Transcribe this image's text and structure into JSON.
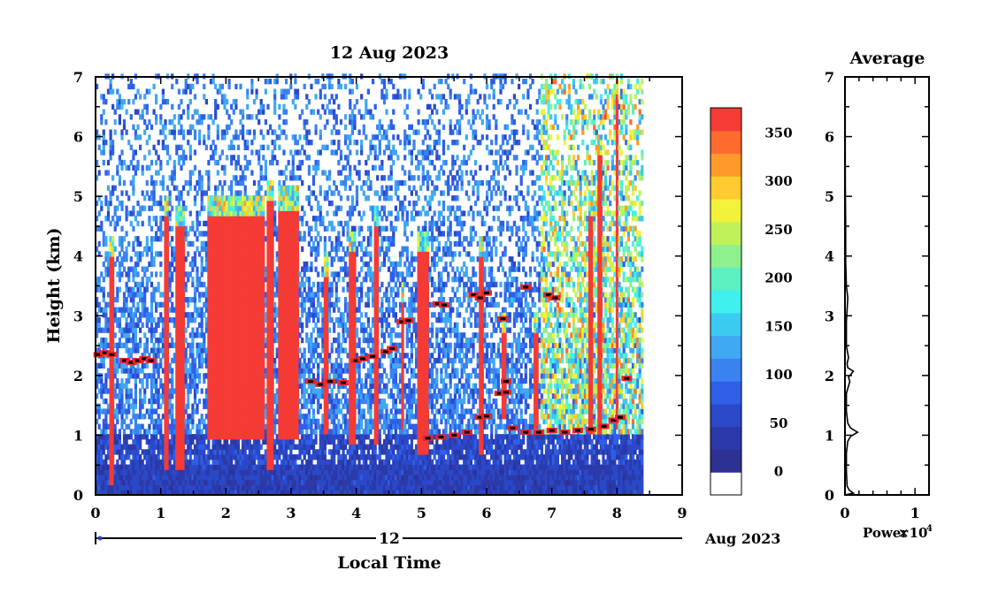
{
  "chart_data": [
    {
      "type": "heatmap",
      "title": "12 Aug 2023",
      "xlabel": "Local Time",
      "ylabel": "Height (km)",
      "x_ticks": [
        "0",
        "1",
        "2",
        "3",
        "4",
        "5",
        "6",
        "7",
        "8",
        "9"
      ],
      "y_ticks": [
        "0",
        "1",
        "2",
        "3",
        "4",
        "5",
        "6",
        "7"
      ],
      "xlim": [
        0,
        9
      ],
      "ylim": [
        0,
        7
      ],
      "data_end_time": 8.4,
      "date_axis": {
        "day_label": "12",
        "month_year_label": "Aug 2023"
      },
      "colorbar": {
        "ticks": [
          "0",
          "50",
          "100",
          "150",
          "200",
          "250",
          "300",
          "350"
        ],
        "range": [
          -25,
          375
        ],
        "colors": [
          "#ffffff",
          "#2e3192",
          "#2b3aa8",
          "#2a48c8",
          "#2f5fe6",
          "#3a82f0",
          "#40a8f2",
          "#3ccbf0",
          "#3ff0ee",
          "#5cf0c2",
          "#8ff08e",
          "#bff25a",
          "#f2f23a",
          "#ffcb30",
          "#ff9a2a",
          "#ff6a2e",
          "#f53b35"
        ]
      },
      "series": [
        {
          "name": "clouds",
          "cells": []
        },
        {
          "name": "cloud_base",
          "points": [
            [
              0.05,
              2.35
            ],
            [
              0.15,
              2.38
            ],
            [
              0.25,
              2.35
            ],
            [
              0.45,
              2.25
            ],
            [
              0.55,
              2.22
            ],
            [
              0.65,
              2.25
            ],
            [
              0.75,
              2.28
            ],
            [
              0.85,
              2.25
            ],
            [
              3.3,
              1.9
            ],
            [
              3.45,
              1.85
            ],
            [
              3.6,
              1.9
            ],
            [
              3.8,
              1.88
            ],
            [
              4.0,
              2.25
            ],
            [
              4.1,
              2.28
            ],
            [
              4.25,
              2.32
            ],
            [
              4.45,
              2.4
            ],
            [
              4.55,
              2.45
            ],
            [
              4.7,
              2.9
            ],
            [
              4.8,
              2.92
            ],
            [
              5.25,
              3.2
            ],
            [
              5.35,
              3.18
            ],
            [
              5.8,
              3.35
            ],
            [
              5.9,
              3.3
            ],
            [
              6.0,
              3.38
            ],
            [
              6.25,
              2.95
            ],
            [
              6.3,
              1.9
            ],
            [
              6.6,
              3.48
            ],
            [
              6.95,
              3.35
            ],
            [
              7.05,
              3.3
            ],
            [
              5.1,
              0.95
            ],
            [
              5.3,
              0.97
            ],
            [
              5.5,
              1.0
            ],
            [
              5.7,
              1.05
            ],
            [
              5.9,
              1.3
            ],
            [
              6.0,
              1.32
            ],
            [
              6.2,
              1.7
            ],
            [
              6.3,
              1.72
            ],
            [
              6.4,
              1.12
            ],
            [
              6.6,
              1.05
            ],
            [
              6.8,
              1.05
            ],
            [
              7.0,
              1.08
            ],
            [
              7.2,
              1.05
            ],
            [
              7.4,
              1.08
            ],
            [
              7.6,
              1.1
            ],
            [
              7.8,
              1.15
            ],
            [
              7.95,
              1.25
            ],
            [
              8.05,
              1.3
            ],
            [
              8.15,
              1.95
            ]
          ]
        }
      ]
    },
    {
      "type": "line",
      "title": "Average",
      "xlabel": "Power",
      "x_multiplier_label": "×10",
      "x_multiplier_exp": "4",
      "x_ticks": [
        "0",
        "1"
      ],
      "y_ticks": [
        "0",
        "1",
        "2",
        "3",
        "4",
        "5",
        "6",
        "7"
      ],
      "xlim": [
        0,
        1.2
      ],
      "ylim": [
        0,
        7
      ],
      "series": [
        {
          "name": "average_power",
          "points": [
            [
              0.0,
              0.0
            ],
            [
              0.12,
              0.03
            ],
            [
              0.06,
              0.08
            ],
            [
              0.03,
              0.15
            ],
            [
              0.02,
              0.4
            ],
            [
              0.02,
              0.7
            ],
            [
              0.04,
              0.9
            ],
            [
              0.08,
              0.98
            ],
            [
              0.18,
              1.05
            ],
            [
              0.08,
              1.12
            ],
            [
              0.04,
              1.2
            ],
            [
              0.02,
              1.4
            ],
            [
              0.02,
              1.7
            ],
            [
              0.07,
              1.9
            ],
            [
              0.05,
              1.97
            ],
            [
              0.12,
              2.07
            ],
            [
              0.04,
              2.13
            ],
            [
              0.03,
              2.2
            ],
            [
              0.05,
              2.3
            ],
            [
              0.02,
              2.5
            ],
            [
              0.02,
              2.9
            ],
            [
              0.04,
              3.3
            ],
            [
              0.02,
              3.5
            ],
            [
              0.01,
              3.9
            ],
            [
              0.01,
              4.5
            ],
            [
              0.005,
              5.2
            ],
            [
              0.004,
              6.0
            ],
            [
              0.003,
              7.0
            ]
          ]
        }
      ]
    }
  ]
}
